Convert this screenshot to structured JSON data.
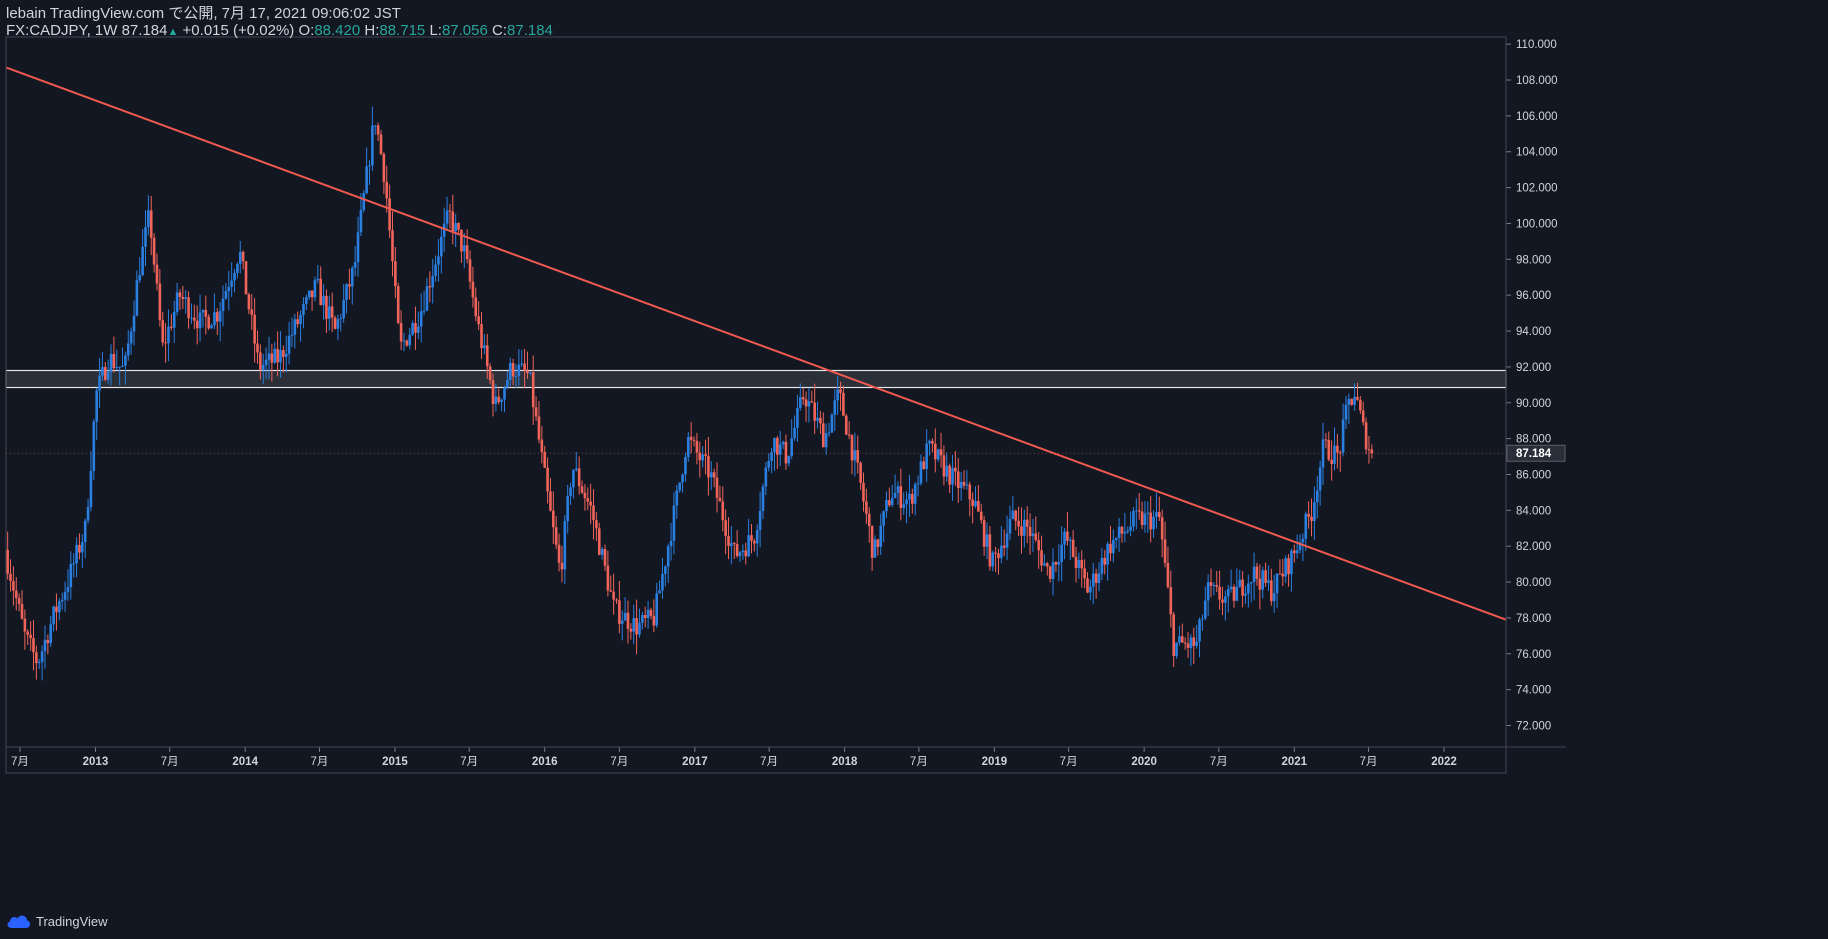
{
  "header": {
    "publish_text": "lebain TradingView.com で公開, 7月 17, 2021 09:06:02 JST",
    "symbol": "FX:CADJPY, 1W",
    "last": "87.184",
    "change": "+0.015 (+0.02%)",
    "open_label": "O:",
    "open": "88.420",
    "high_label": "H:",
    "high": "88.715",
    "low_label": "L:",
    "low": "87.056",
    "close_label": "C:",
    "close": "87.184"
  },
  "footer": {
    "brand": "TradingView"
  },
  "colors": {
    "background": "#131722",
    "up": "#2a7fe0",
    "down": "#f0645a",
    "trendline": "#f05a50",
    "zone": "#e6e6e6",
    "axis_text": "#d1d4dc"
  },
  "chart_data": {
    "type": "candlestick",
    "symbol": "FX:CADJPY",
    "interval": "1W",
    "x_range": [
      "2012-05-28",
      "2022-06-01"
    ],
    "y_range": [
      70.8,
      110.4
    ],
    "y_ticks": [
      72,
      74,
      76,
      78,
      80,
      82,
      84,
      86,
      88,
      90,
      92,
      94,
      96,
      98,
      100,
      102,
      104,
      106,
      108,
      110
    ],
    "y_tick_labels": [
      "72.000",
      "74.000",
      "76.000",
      "78.000",
      "80.000",
      "82.000",
      "84.000",
      "86.000",
      "88.000",
      "90.000",
      "92.000",
      "94.000",
      "96.000",
      "98.000",
      "100.000",
      "102.000",
      "104.000",
      "106.000",
      "108.000",
      "110.000"
    ],
    "x_ticks": [
      {
        "date": "2012-07-01",
        "label": "7月"
      },
      {
        "date": "2013-01-01",
        "label": "2013"
      },
      {
        "date": "2013-07-01",
        "label": "7月"
      },
      {
        "date": "2014-01-01",
        "label": "2014"
      },
      {
        "date": "2014-07-01",
        "label": "7月"
      },
      {
        "date": "2015-01-01",
        "label": "2015"
      },
      {
        "date": "2015-07-01",
        "label": "7月"
      },
      {
        "date": "2016-01-01",
        "label": "2016"
      },
      {
        "date": "2016-07-01",
        "label": "7月"
      },
      {
        "date": "2017-01-01",
        "label": "2017"
      },
      {
        "date": "2017-07-01",
        "label": "7月"
      },
      {
        "date": "2018-01-01",
        "label": "2018"
      },
      {
        "date": "2018-07-01",
        "label": "7月"
      },
      {
        "date": "2019-01-01",
        "label": "2019"
      },
      {
        "date": "2019-07-01",
        "label": "7月"
      },
      {
        "date": "2020-01-01",
        "label": "2020"
      },
      {
        "date": "2020-07-01",
        "label": "7月"
      },
      {
        "date": "2021-01-01",
        "label": "2021"
      },
      {
        "date": "2021-07-01",
        "label": "7月"
      },
      {
        "date": "2022-01-01",
        "label": "2022"
      }
    ],
    "last_price": 87.184,
    "last_price_label": "87.184",
    "price_path_anchors": [
      {
        "date": "2012-06-01",
        "price": 81.8
      },
      {
        "date": "2012-07-20",
        "price": 77.0
      },
      {
        "date": "2012-08-20",
        "price": 75.5
      },
      {
        "date": "2012-10-01",
        "price": 78.3
      },
      {
        "date": "2012-11-01",
        "price": 80.0
      },
      {
        "date": "2012-12-15",
        "price": 83.0
      },
      {
        "date": "2013-01-10",
        "price": 90.5
      },
      {
        "date": "2013-02-10",
        "price": 92.5
      },
      {
        "date": "2013-03-20",
        "price": 91.8
      },
      {
        "date": "2013-04-25",
        "price": 97.5
      },
      {
        "date": "2013-05-20",
        "price": 100.5
      },
      {
        "date": "2013-06-20",
        "price": 93.0
      },
      {
        "date": "2013-08-01",
        "price": 96.0
      },
      {
        "date": "2013-09-20",
        "price": 94.5
      },
      {
        "date": "2013-11-01",
        "price": 95.0
      },
      {
        "date": "2013-12-25",
        "price": 98.5
      },
      {
        "date": "2014-02-10",
        "price": 92.0
      },
      {
        "date": "2014-04-01",
        "price": 92.5
      },
      {
        "date": "2014-07-01",
        "price": 96.5
      },
      {
        "date": "2014-08-15",
        "price": 94.0
      },
      {
        "date": "2014-10-01",
        "price": 97.5
      },
      {
        "date": "2014-11-20",
        "price": 106.0
      },
      {
        "date": "2014-12-15",
        "price": 102.5
      },
      {
        "date": "2015-01-20",
        "price": 93.0
      },
      {
        "date": "2015-03-10",
        "price": 95.0
      },
      {
        "date": "2015-05-20",
        "price": 100.5
      },
      {
        "date": "2015-06-25",
        "price": 98.5
      },
      {
        "date": "2015-08-01",
        "price": 94.0
      },
      {
        "date": "2015-09-10",
        "price": 89.8
      },
      {
        "date": "2015-10-20",
        "price": 92.0
      },
      {
        "date": "2015-12-01",
        "price": 91.5
      },
      {
        "date": "2016-01-20",
        "price": 84.0
      },
      {
        "date": "2016-02-15",
        "price": 80.5
      },
      {
        "date": "2016-03-15",
        "price": 86.5
      },
      {
        "date": "2016-05-01",
        "price": 84.0
      },
      {
        "date": "2016-06-25",
        "price": 78.5
      },
      {
        "date": "2016-08-20",
        "price": 77.5
      },
      {
        "date": "2016-10-01",
        "price": 78.0
      },
      {
        "date": "2016-11-20",
        "price": 84.0
      },
      {
        "date": "2016-12-20",
        "price": 88.0
      },
      {
        "date": "2017-02-15",
        "price": 86.0
      },
      {
        "date": "2017-04-15",
        "price": 81.5
      },
      {
        "date": "2017-06-01",
        "price": 82.5
      },
      {
        "date": "2017-07-15",
        "price": 88.0
      },
      {
        "date": "2017-08-20",
        "price": 87.0
      },
      {
        "date": "2017-10-01",
        "price": 90.5
      },
      {
        "date": "2017-11-20",
        "price": 88.0
      },
      {
        "date": "2017-12-25",
        "price": 90.5
      },
      {
        "date": "2018-02-15",
        "price": 85.5
      },
      {
        "date": "2018-03-20",
        "price": 81.5
      },
      {
        "date": "2018-05-01",
        "price": 85.0
      },
      {
        "date": "2018-06-15",
        "price": 84.5
      },
      {
        "date": "2018-08-01",
        "price": 87.5
      },
      {
        "date": "2018-09-20",
        "price": 86.0
      },
      {
        "date": "2018-11-20",
        "price": 84.5
      },
      {
        "date": "2019-01-03",
        "price": 81.0
      },
      {
        "date": "2019-02-20",
        "price": 83.5
      },
      {
        "date": "2019-04-01",
        "price": 83.0
      },
      {
        "date": "2019-05-20",
        "price": 80.5
      },
      {
        "date": "2019-07-01",
        "price": 82.5
      },
      {
        "date": "2019-08-25",
        "price": 79.5
      },
      {
        "date": "2019-10-15",
        "price": 82.0
      },
      {
        "date": "2019-12-20",
        "price": 83.5
      },
      {
        "date": "2020-02-15",
        "price": 83.5
      },
      {
        "date": "2020-03-20",
        "price": 76.5
      },
      {
        "date": "2020-05-15",
        "price": 76.5
      },
      {
        "date": "2020-06-10",
        "price": 79.5
      },
      {
        "date": "2020-08-01",
        "price": 79.0
      },
      {
        "date": "2020-10-01",
        "price": 80.5
      },
      {
        "date": "2020-11-15",
        "price": 79.5
      },
      {
        "date": "2021-01-05",
        "price": 81.5
      },
      {
        "date": "2021-02-20",
        "price": 84.0
      },
      {
        "date": "2021-03-20",
        "price": 87.5
      },
      {
        "date": "2021-04-25",
        "price": 87.0
      },
      {
        "date": "2021-05-20",
        "price": 90.0
      },
      {
        "date": "2021-06-05",
        "price": 90.5
      },
      {
        "date": "2021-06-25",
        "price": 88.5
      },
      {
        "date": "2021-07-14",
        "price": 87.2
      }
    ],
    "trendline": {
      "from": {
        "date": "2012-05-28",
        "price": 108.7
      },
      "to": {
        "date": "2022-06-01",
        "price": 77.9
      }
    },
    "resistance_zone": {
      "upper": 91.8,
      "lower": 90.85
    }
  }
}
